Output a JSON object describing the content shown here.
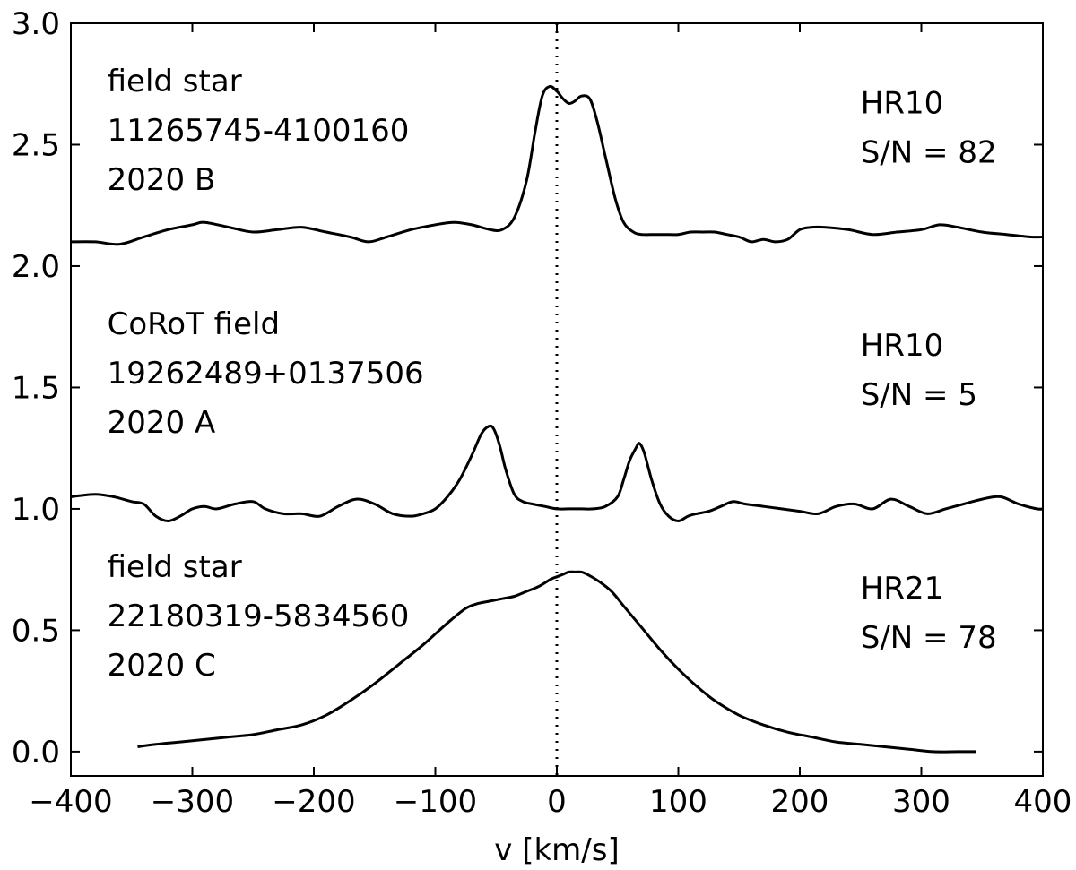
{
  "chart_data": {
    "type": "line",
    "title": "",
    "xlabel": "v [km/s]",
    "ylabel": "",
    "xlim": [
      -400,
      400
    ],
    "ylim": [
      -0.1,
      3.0
    ],
    "xticks": [
      -400,
      -300,
      -200,
      -100,
      0,
      100,
      200,
      300,
      400
    ],
    "xtick_labels": [
      "−400",
      "−300",
      "−200",
      "−100",
      "0",
      "100",
      "200",
      "300",
      "400"
    ],
    "yticks": [
      0.0,
      0.5,
      1.0,
      1.5,
      2.0,
      2.5,
      3.0
    ],
    "ytick_labels": [
      "0.0",
      "0.5",
      "1.0",
      "1.5",
      "2.0",
      "2.5",
      "3.0"
    ],
    "grid": false,
    "legend": "none",
    "reference_line": {
      "x": 0,
      "style": "dotted"
    },
    "annotations": [
      {
        "lines": [
          "field star",
          "11265745-4100160",
          "2020 B"
        ],
        "anchor_x": -370,
        "anchor_y": 2.72,
        "align": "left"
      },
      {
        "lines": [
          "HR10",
          "S/N = 82"
        ],
        "anchor_x": 250,
        "anchor_y": 2.63,
        "align": "left"
      },
      {
        "lines": [
          "CoRoT field",
          "19262489+0137506",
          "2020 A"
        ],
        "anchor_x": -370,
        "anchor_y": 1.72,
        "align": "left"
      },
      {
        "lines": [
          "HR10",
          "S/N = 5"
        ],
        "anchor_x": 250,
        "anchor_y": 1.63,
        "align": "left"
      },
      {
        "lines": [
          "field star",
          "22180319-5834560",
          "2020 C"
        ],
        "anchor_x": -370,
        "anchor_y": 0.72,
        "align": "left"
      },
      {
        "lines": [
          "HR21",
          "S/N = 78"
        ],
        "anchor_x": 250,
        "anchor_y": 0.63,
        "align": "left"
      }
    ],
    "series": [
      {
        "color": "#000000",
        "x": [
          -400,
          -380,
          -360,
          -340,
          -320,
          -300,
          -290,
          -270,
          -250,
          -230,
          -210,
          -190,
          -170,
          -155,
          -140,
          -120,
          -100,
          -85,
          -70,
          -55,
          -45,
          -35,
          -25,
          -18,
          -12,
          -6,
          0,
          5,
          10,
          15,
          20,
          27,
          33,
          40,
          48,
          55,
          63,
          70,
          80,
          90,
          100,
          110,
          120,
          130,
          140,
          150,
          160,
          170,
          180,
          190,
          200,
          210,
          220,
          240,
          260,
          280,
          300,
          315,
          330,
          350,
          370,
          390,
          400
        ],
        "y": [
          2.1,
          2.1,
          2.09,
          2.12,
          2.15,
          2.17,
          2.18,
          2.16,
          2.14,
          2.15,
          2.16,
          2.14,
          2.12,
          2.1,
          2.12,
          2.15,
          2.17,
          2.18,
          2.17,
          2.15,
          2.15,
          2.2,
          2.35,
          2.55,
          2.7,
          2.74,
          2.72,
          2.69,
          2.67,
          2.68,
          2.7,
          2.69,
          2.6,
          2.45,
          2.28,
          2.18,
          2.14,
          2.13,
          2.13,
          2.13,
          2.13,
          2.14,
          2.14,
          2.14,
          2.13,
          2.12,
          2.1,
          2.11,
          2.1,
          2.11,
          2.15,
          2.16,
          2.16,
          2.15,
          2.13,
          2.14,
          2.15,
          2.17,
          2.16,
          2.14,
          2.13,
          2.12,
          2.12
        ]
      },
      {
        "color": "#000000",
        "x": [
          -400,
          -380,
          -365,
          -350,
          -340,
          -330,
          -320,
          -310,
          -300,
          -290,
          -280,
          -265,
          -250,
          -240,
          -225,
          -210,
          -195,
          -180,
          -165,
          -150,
          -135,
          -120,
          -110,
          -100,
          -90,
          -80,
          -70,
          -62,
          -56,
          -52,
          -47,
          -42,
          -35,
          -28,
          -20,
          -10,
          0,
          10,
          20,
          30,
          40,
          50,
          55,
          60,
          65,
          68,
          72,
          78,
          85,
          92,
          100,
          108,
          115,
          125,
          135,
          145,
          155,
          170,
          185,
          200,
          215,
          230,
          245,
          260,
          275,
          290,
          305,
          320,
          335,
          350,
          365,
          380,
          395,
          400
        ],
        "y": [
          1.05,
          1.06,
          1.05,
          1.03,
          1.02,
          0.97,
          0.95,
          0.97,
          1.0,
          1.01,
          1.0,
          1.02,
          1.03,
          1.0,
          0.98,
          0.98,
          0.97,
          1.01,
          1.04,
          1.02,
          0.98,
          0.97,
          0.98,
          1.0,
          1.05,
          1.12,
          1.22,
          1.31,
          1.34,
          1.33,
          1.26,
          1.16,
          1.06,
          1.03,
          1.02,
          1.01,
          1.0,
          1.0,
          1.0,
          1.0,
          1.01,
          1.05,
          1.12,
          1.2,
          1.25,
          1.27,
          1.23,
          1.12,
          1.02,
          0.97,
          0.95,
          0.97,
          0.98,
          0.99,
          1.01,
          1.03,
          1.02,
          1.01,
          1.0,
          0.99,
          0.98,
          1.01,
          1.02,
          1.0,
          1.04,
          1.01,
          0.98,
          1.0,
          1.02,
          1.04,
          1.05,
          1.02,
          1.0,
          1.0
        ]
      },
      {
        "color": "#000000",
        "x": [
          -345,
          -330,
          -310,
          -290,
          -270,
          -250,
          -230,
          -210,
          -190,
          -170,
          -150,
          -130,
          -110,
          -90,
          -75,
          -65,
          -55,
          -45,
          -35,
          -25,
          -15,
          -5,
          0,
          5,
          10,
          15,
          20,
          25,
          35,
          45,
          55,
          70,
          85,
          100,
          115,
          130,
          150,
          170,
          190,
          210,
          230,
          250,
          270,
          290,
          310,
          330,
          345
        ],
        "y": [
          0.02,
          0.03,
          0.04,
          0.05,
          0.06,
          0.07,
          0.09,
          0.11,
          0.15,
          0.21,
          0.28,
          0.36,
          0.44,
          0.53,
          0.59,
          0.61,
          0.62,
          0.63,
          0.64,
          0.66,
          0.68,
          0.71,
          0.72,
          0.73,
          0.74,
          0.74,
          0.74,
          0.73,
          0.7,
          0.66,
          0.6,
          0.51,
          0.42,
          0.34,
          0.27,
          0.21,
          0.15,
          0.11,
          0.08,
          0.06,
          0.04,
          0.03,
          0.02,
          0.01,
          0.0,
          0.0,
          0.0
        ]
      }
    ]
  }
}
